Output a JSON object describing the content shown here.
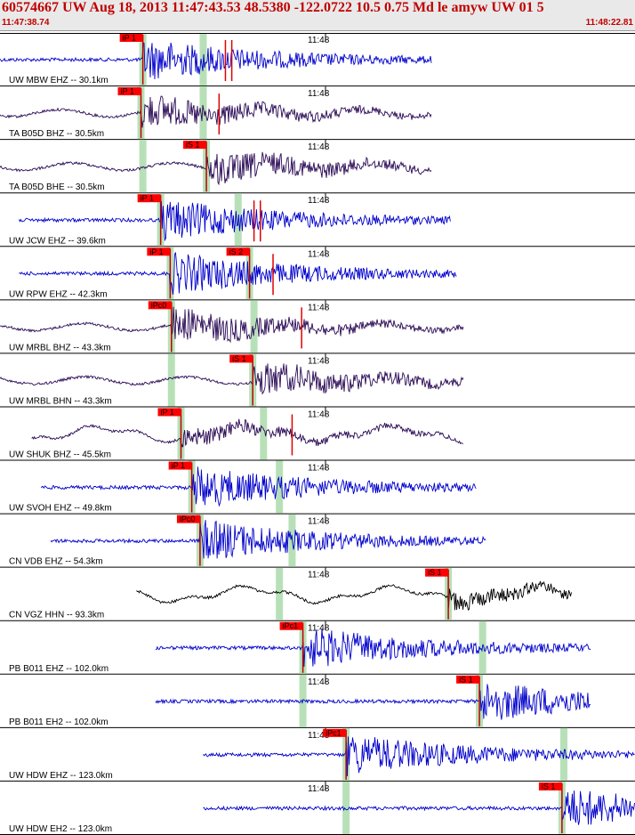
{
  "header": {
    "title": "60574667 UW Aug 18, 2013 11:47:43.53    48.5380 -122.0722 10.5 0.75 Md le amyw UW 01   5",
    "start_time": "11:47:38.74",
    "end_time": "11:48:22.81"
  },
  "colors": {
    "accent": "#c00000",
    "header_bg": "#e9e9e9",
    "pick_box": "#ff0000",
    "pick_window": "#b8e0b8",
    "wave_blue": "#0000cc",
    "wave_purple": "#2a0a55",
    "wave_black": "#000000"
  },
  "minute_label": "11:48",
  "traces": [
    {
      "label": "UW MBW EHZ -- 30.1km",
      "start": 0.0,
      "end": 0.68,
      "color": "#0000cc",
      "style": "hf",
      "picks": [
        {
          "text": "iP 1",
          "pos": 0.225
        }
      ],
      "windows": [
        0.225,
        0.32
      ],
      "extra_marks": [
        0.355,
        0.365
      ]
    },
    {
      "label": "TA B05D BHZ -- 30.5km",
      "start": 0.0,
      "end": 0.68,
      "color": "#2a0a55",
      "style": "lf",
      "picks": [
        {
          "text": "iP 1",
          "pos": 0.222
        }
      ],
      "windows": [
        0.222,
        0.32
      ],
      "extra_marks": [
        0.345
      ]
    },
    {
      "label": "TA B05D BHE -- 30.5km",
      "start": 0.0,
      "end": 0.68,
      "color": "#2a0a55",
      "style": "lf",
      "picks": [
        {
          "text": "iS 1",
          "pos": 0.325
        }
      ],
      "windows": [
        0.225,
        0.325
      ],
      "extra_marks": []
    },
    {
      "label": "UW JCW EHZ -- 39.6km",
      "start": 0.03,
      "end": 0.71,
      "color": "#0000cc",
      "style": "hf",
      "picks": [
        {
          "text": "iP 1",
          "pos": 0.253
        }
      ],
      "windows": [
        0.253,
        0.375
      ],
      "extra_marks": [
        0.4,
        0.41
      ]
    },
    {
      "label": "UW RPW EHZ -- 42.3km",
      "start": 0.03,
      "end": 0.72,
      "color": "#0000cc",
      "style": "hf",
      "picks": [
        {
          "text": "iP 1",
          "pos": 0.268
        },
        {
          "text": "iS 2",
          "pos": 0.393
        }
      ],
      "windows": [
        0.268,
        0.393
      ],
      "extra_marks": [
        0.43
      ]
    },
    {
      "label": "UW MRBL BHZ -- 43.3km",
      "start": 0.0,
      "end": 0.73,
      "color": "#2a0a55",
      "style": "lf",
      "picks": [
        {
          "text": "iPc0",
          "pos": 0.27
        }
      ],
      "windows": [
        0.27,
        0.4
      ],
      "extra_marks": [
        0.475
      ]
    },
    {
      "label": "UW MRBL BHN -- 43.3km",
      "start": 0.0,
      "end": 0.73,
      "color": "#2a0a55",
      "style": "lf",
      "picks": [
        {
          "text": "iS 1",
          "pos": 0.398
        }
      ],
      "windows": [
        0.27,
        0.398
      ],
      "extra_marks": []
    },
    {
      "label": "UW SHUK BHZ -- 45.5km",
      "start": 0.05,
      "end": 0.73,
      "color": "#2a0a55",
      "style": "slow",
      "picks": [
        {
          "text": "iP 1",
          "pos": 0.285
        }
      ],
      "windows": [
        0.285,
        0.415
      ],
      "extra_marks": [
        0.46
      ]
    },
    {
      "label": "UW SVOH EHZ -- 49.8km",
      "start": 0.065,
      "end": 0.75,
      "color": "#0000cc",
      "style": "hf",
      "picks": [
        {
          "text": "iP 1",
          "pos": 0.302
        }
      ],
      "windows": [
        0.302,
        0.44
      ],
      "extra_marks": []
    },
    {
      "label": "CN VDB EHZ -- 54.3km",
      "start": 0.08,
      "end": 0.765,
      "color": "#0000cc",
      "style": "hf",
      "picks": [
        {
          "text": "iPc0",
          "pos": 0.315
        }
      ],
      "windows": [
        0.315,
        0.46
      ],
      "extra_marks": []
    },
    {
      "label": "CN VGZ HHN -- 93.3km",
      "start": 0.215,
      "end": 0.9,
      "color": "#000000",
      "style": "slow",
      "picks": [
        {
          "text": "iS 1",
          "pos": 0.706
        }
      ],
      "windows": [
        0.44,
        0.706
      ],
      "extra_marks": []
    },
    {
      "label": "PB B011 EHZ -- 102.0km",
      "start": 0.245,
      "end": 0.93,
      "color": "#0000cc",
      "style": "hf",
      "picks": [
        {
          "text": "iPc1",
          "pos": 0.477
        }
      ],
      "windows": [
        0.477,
        0.76
      ],
      "extra_marks": []
    },
    {
      "label": "PB B011 EH2 -- 102.0km",
      "start": 0.245,
      "end": 0.93,
      "color": "#0000cc",
      "style": "hf",
      "picks": [
        {
          "text": "iS 1",
          "pos": 0.755
        }
      ],
      "windows": [
        0.477,
        0.755
      ],
      "extra_marks": []
    },
    {
      "label": "UW HDW EHZ -- 123.0km",
      "start": 0.32,
      "end": 1.0,
      "color": "#0000cc",
      "style": "hf",
      "picks": [
        {
          "text": "iPc1",
          "pos": 0.545
        }
      ],
      "windows": [
        0.545,
        0.888
      ],
      "extra_marks": []
    },
    {
      "label": "UW HDW EH2 -- 123.0km",
      "start": 0.32,
      "end": 1.0,
      "color": "#0000cc",
      "style": "hf",
      "picks": [
        {
          "text": "iS 1",
          "pos": 0.885
        }
      ],
      "windows": [
        0.545,
        0.885
      ],
      "extra_marks": []
    }
  ]
}
